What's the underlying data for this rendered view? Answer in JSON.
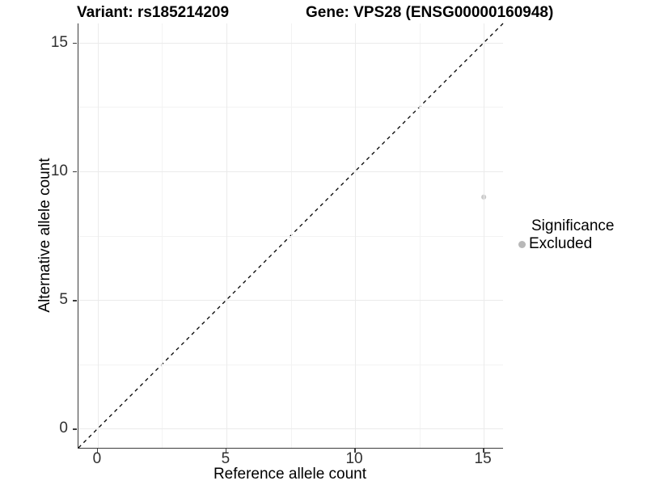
{
  "titles": {
    "variant": "Variant: rs185214209",
    "gene": "Gene: VPS28 (ENSG00000160948)"
  },
  "axes": {
    "x_label": "Reference allele count",
    "y_label": "Alternative allele count"
  },
  "legend": {
    "title": "Significance",
    "items": [
      {
        "label": "Excluded",
        "color": "#b8b8b8"
      }
    ]
  },
  "colors": {
    "axis_line": "#3c3c3c",
    "tick_text": "#303030",
    "grid_major": "#ebebeb",
    "grid_minor": "#f3f3f3",
    "identity_line": "#000000",
    "point": "#cbcbcb"
  },
  "chart_data": {
    "type": "scatter",
    "title": "Variant: rs185214209    Gene: VPS28 (ENSG00000160948)",
    "xlabel": "Reference allele count",
    "ylabel": "Alternative allele count",
    "xlim": [
      -0.75,
      15.75
    ],
    "ylim": [
      -0.75,
      15.75
    ],
    "x_ticks": [
      0,
      5,
      10,
      15
    ],
    "y_ticks": [
      0,
      5,
      10,
      15
    ],
    "minor_ticks": [
      2.5,
      7.5,
      12.5
    ],
    "grid": "major+minor",
    "legend_position": "right",
    "legend_title": "Significance",
    "reference_line": {
      "style": "dashed",
      "from": [
        -0.75,
        -0.75
      ],
      "to": [
        15.75,
        15.75
      ]
    },
    "series": [
      {
        "name": "Excluded",
        "color": "#cbcbcb",
        "points": [
          {
            "x": 15,
            "y": 9
          }
        ]
      }
    ]
  }
}
